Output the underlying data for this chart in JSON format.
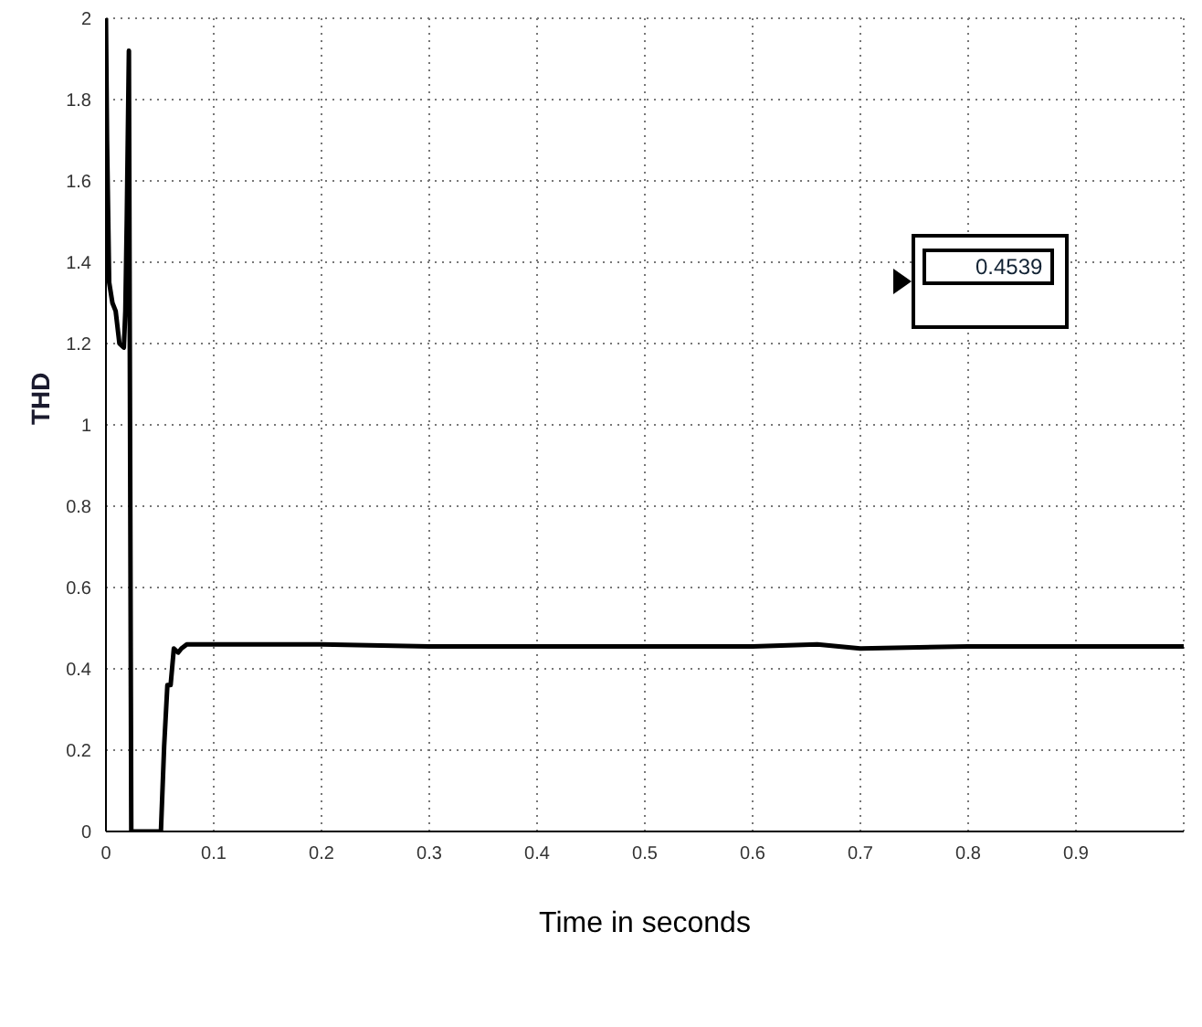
{
  "chart_data": {
    "type": "line",
    "xlabel": "Time in seconds",
    "ylabel": "THD",
    "x": [
      0,
      0.001,
      0.003,
      0.006,
      0.009,
      0.0125,
      0.0166,
      0.018,
      0.0193,
      0.0213,
      0.0235,
      0.051,
      0.054,
      0.057,
      0.06,
      0.063,
      0.067,
      0.07,
      0.075,
      0.1,
      0.2,
      0.3,
      0.4,
      0.5,
      0.6,
      0.66,
      0.7,
      0.8,
      0.9,
      1.0
    ],
    "series": [
      {
        "color": "#000000",
        "values": [
          2,
          1.7,
          1.35,
          1.3,
          1.28,
          1.2,
          1.19,
          1.28,
          1.5,
          1.92,
          0,
          0,
          0.21,
          0.36,
          0.36,
          0.45,
          0.44,
          0.45,
          0.46,
          0.46,
          0.46,
          0.455,
          0.455,
          0.455,
          0.455,
          0.46,
          0.45,
          0.455,
          0.455,
          0.455
        ]
      }
    ],
    "xlim": [
      0,
      1
    ],
    "xticks": [
      0,
      0.1,
      0.2,
      0.3,
      0.4,
      0.5,
      0.6,
      0.7,
      0.8,
      0.9
    ],
    "ylim": [
      0,
      2
    ],
    "yticks": [
      0,
      0.2,
      0.4,
      0.6,
      0.8,
      1,
      1.2,
      1.4,
      1.6,
      1.8,
      2
    ],
    "grid": true,
    "marker": "none",
    "line_style": "solid",
    "annotations": [
      "0.4539"
    ]
  }
}
